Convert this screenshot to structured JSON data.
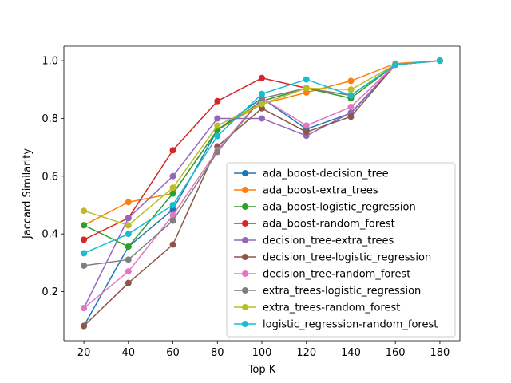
{
  "chart_data": {
    "type": "line",
    "xlabel": "Top K",
    "ylabel": "Jaccard Similarity",
    "x": [
      20,
      40,
      60,
      80,
      100,
      120,
      140,
      160,
      180
    ],
    "xlim": [
      11,
      189
    ],
    "ylim": [
      0.03,
      1.05
    ],
    "xticks": [
      "20",
      "40",
      "60",
      "80",
      "100",
      "120",
      "140",
      "160",
      "180"
    ],
    "yticks": [
      "0.2",
      "0.4",
      "0.6",
      "0.8",
      "1.0"
    ],
    "grid": false,
    "legend_position": "lower-right",
    "series": [
      {
        "name": "ada_boost-decision_tree",
        "color": "#1f77b4",
        "values": [
          0.081,
          0.356,
          0.484,
          0.76,
          0.871,
          0.763,
          0.818,
          0.986,
          1.0
        ]
      },
      {
        "name": "ada_boost-extra_trees",
        "color": "#ff7f0e",
        "values": [
          0.43,
          0.51,
          0.54,
          0.76,
          0.85,
          0.89,
          0.93,
          0.99,
          1.0
        ]
      },
      {
        "name": "ada_boost-logistic_regression",
        "color": "#2ca02c",
        "values": [
          0.43,
          0.356,
          0.54,
          0.76,
          0.86,
          0.905,
          0.87,
          0.986,
          1.0
        ]
      },
      {
        "name": "ada_boost-random_forest",
        "color": "#d62728",
        "values": [
          0.38,
          0.455,
          0.69,
          0.86,
          0.94,
          0.905,
          0.88,
          0.986,
          1.0
        ]
      },
      {
        "name": "decision_tree-extra_trees",
        "color": "#9467bd",
        "values": [
          0.143,
          0.455,
          0.6,
          0.8,
          0.8,
          0.74,
          0.82,
          0.986,
          1.0
        ]
      },
      {
        "name": "decision_tree-logistic_regression",
        "color": "#8c564b",
        "values": [
          0.081,
          0.23,
          0.363,
          0.703,
          0.835,
          0.753,
          0.806,
          0.986,
          1.0
        ]
      },
      {
        "name": "decision_tree-random_forest",
        "color": "#e377c2",
        "values": [
          0.143,
          0.27,
          0.465,
          0.69,
          0.871,
          0.775,
          0.84,
          0.986,
          1.0
        ]
      },
      {
        "name": "extra_trees-logistic_regression",
        "color": "#7f7f7f",
        "values": [
          0.29,
          0.311,
          0.446,
          0.684,
          0.87,
          0.905,
          0.88,
          0.986,
          1.0
        ]
      },
      {
        "name": "extra_trees-random_forest",
        "color": "#bcbd22",
        "values": [
          0.48,
          0.43,
          0.56,
          0.775,
          0.85,
          0.905,
          0.9,
          0.986,
          1.0
        ]
      },
      {
        "name": "logistic_regression-random_forest",
        "color": "#17becf",
        "values": [
          0.333,
          0.4,
          0.5,
          0.739,
          0.885,
          0.935,
          0.88,
          0.986,
          1.0
        ]
      }
    ]
  }
}
